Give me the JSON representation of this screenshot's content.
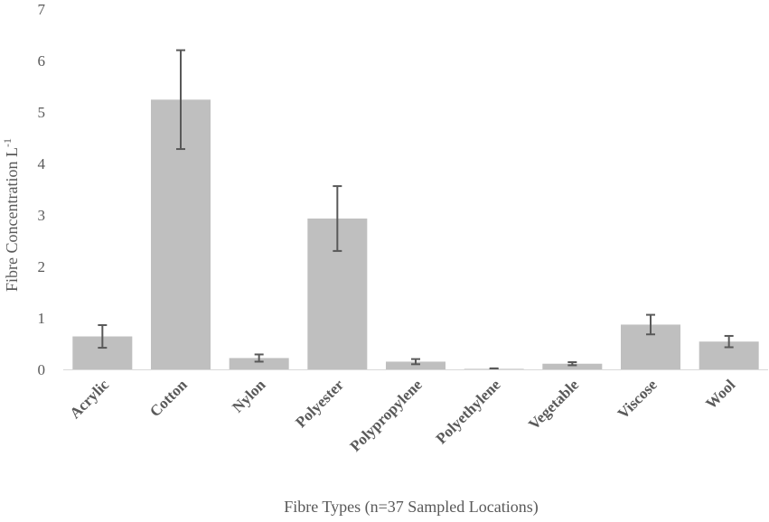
{
  "chart_data": {
    "type": "bar",
    "title": "",
    "xlabel": "Fibre Types (n=37 Sampled Locations)",
    "ylabel_main": "Fibre Concentration L",
    "ylabel_sup": "-1",
    "ylim": [
      0,
      7
    ],
    "yticks": [
      0,
      1,
      2,
      3,
      4,
      5,
      6,
      7
    ],
    "grid": false,
    "categories": [
      "Acrylic",
      "Cotton",
      "Nylon",
      "Polyester",
      "Polypropylene",
      "Polyethylene",
      "Vegetable",
      "Viscose",
      "Wool"
    ],
    "values": [
      0.64,
      5.24,
      0.22,
      2.93,
      0.15,
      0.01,
      0.11,
      0.87,
      0.54
    ],
    "error": [
      0.22,
      0.96,
      0.07,
      0.63,
      0.05,
      0.01,
      0.03,
      0.19,
      0.11
    ]
  }
}
